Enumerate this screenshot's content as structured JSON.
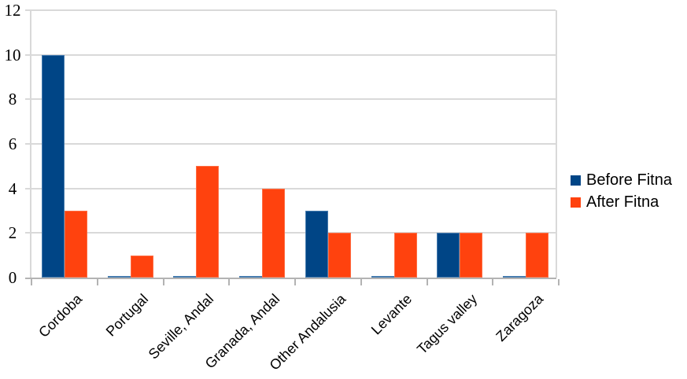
{
  "chart_data": {
    "type": "bar",
    "title": "",
    "xlabel": "",
    "ylabel": "",
    "categories": [
      "Cordoba",
      "Portugal",
      "Seville, Andal",
      "Granada, Andal",
      "Other Andalusia",
      "Levante",
      "Tagus valley",
      "Zaragoza"
    ],
    "series": [
      {
        "name": "Before Fitna",
        "color": "#004586",
        "values": [
          10,
          0,
          0,
          0,
          3,
          0,
          2,
          0
        ]
      },
      {
        "name": "After Fitna",
        "color": "#FF420E",
        "values": [
          3,
          1,
          5,
          4,
          2,
          2,
          2,
          2
        ]
      }
    ],
    "ylim": [
      0,
      12
    ],
    "yticks": [
      0,
      2,
      4,
      6,
      8,
      10,
      12
    ],
    "grid": true,
    "legend_position": "right",
    "colors": {
      "gridline": "#d9d9d9",
      "axis": "#b3b3b3",
      "text": "#000000",
      "background": "#ffffff"
    }
  }
}
